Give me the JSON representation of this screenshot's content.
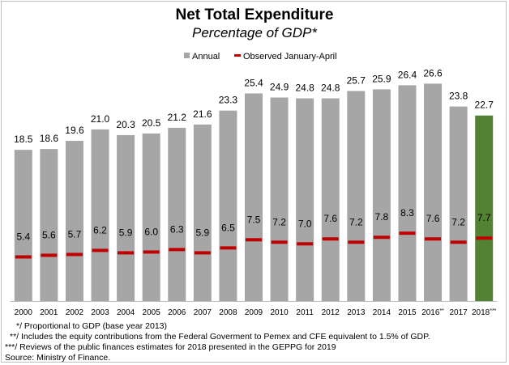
{
  "chart_data": {
    "type": "bar",
    "title": "Net Total Expenditure",
    "subtitle": "Percentage of GDP*",
    "categories": [
      "2000",
      "2001",
      "2002",
      "2003",
      "2004",
      "2005",
      "2006",
      "2007",
      "2008",
      "2009",
      "2010",
      "2011",
      "2012",
      "2013",
      "2014",
      "2015",
      "2016**",
      "2017",
      "2018***"
    ],
    "series": [
      {
        "name": "Annual",
        "kind": "bar",
        "color": "#a6a6a6",
        "highlight_last_color": "#548235",
        "values": [
          18.5,
          18.6,
          19.6,
          21.0,
          20.3,
          20.5,
          21.2,
          21.6,
          23.3,
          25.4,
          24.9,
          24.8,
          24.8,
          25.7,
          25.9,
          26.4,
          26.6,
          23.8,
          22.7
        ]
      },
      {
        "name": "Observed January-April",
        "kind": "marker",
        "color": "#c00000",
        "values": [
          5.4,
          5.6,
          5.7,
          6.2,
          5.9,
          6.0,
          6.3,
          5.9,
          6.5,
          7.5,
          7.2,
          7.0,
          7.6,
          7.2,
          7.8,
          8.3,
          7.6,
          7.2,
          7.7
        ]
      }
    ],
    "ylim": [
      0,
      30
    ],
    "grid": false,
    "legend": "top-center"
  },
  "footnotes": [
    "*/ Proportional to GDP (base year 2013)",
    "**/ Includes the equity contributions from the Federal Goverment to Pemex and CFE equivalent to 1.5% of GDP.",
    "***/ Reviews of the public finances estimates for 2018 presented in the GEPPG for 2019",
    "Source: Ministry of Finance."
  ]
}
